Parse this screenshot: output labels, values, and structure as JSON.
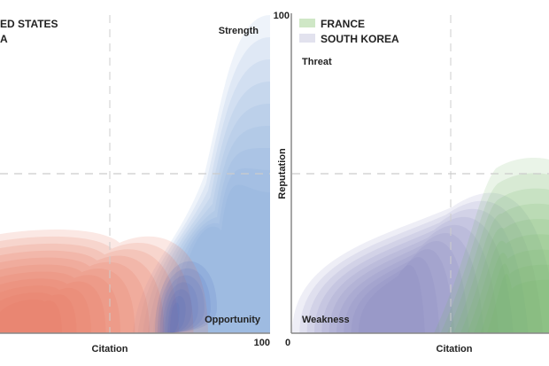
{
  "chart_data": [
    {
      "type": "area",
      "title": "",
      "xlabel": "Citation",
      "ylabel": "",
      "xlim": [
        0,
        100
      ],
      "ylim": [
        0,
        100
      ],
      "x_tick_labels": [
        "100"
      ],
      "legend": {
        "placement": "top-left",
        "entries": [
          {
            "label": "ED STATES",
            "color": "#9ec3e0"
          },
          {
            "label": "A",
            "color": "#e8836a"
          }
        ]
      },
      "quadrant_labels": [
        "Strength",
        "Opportunity"
      ],
      "series": [
        {
          "name": "ED STATES",
          "color": "#5b7fc8",
          "peaks": [
            {
              "x": 90,
              "y": 14
            },
            {
              "x": 95,
              "y": 85
            }
          ]
        },
        {
          "name": "A",
          "color": "#e0674a",
          "peaks": [
            {
              "x": 35,
              "y": 5
            }
          ]
        }
      ]
    },
    {
      "type": "area",
      "title": "",
      "xlabel": "Citation",
      "ylabel": "Reputation",
      "xlim": [
        0,
        100
      ],
      "ylim": [
        0,
        100
      ],
      "x_tick_labels": [
        "0"
      ],
      "y_tick_labels": [
        "100"
      ],
      "legend": {
        "placement": "top-left",
        "entries": [
          {
            "label": "FRANCE",
            "color": "#c9e4c0"
          },
          {
            "label": "SOUTH KOREA",
            "color": "#dcdcea"
          }
        ]
      },
      "quadrant_labels": [
        "Threat",
        "Weakness"
      ],
      "series": [
        {
          "name": "FRANCE",
          "color": "#5a9a52",
          "peaks": [
            {
              "x": 90,
              "y": 7
            }
          ]
        },
        {
          "name": "SOUTH KOREA",
          "color": "#6a5fa8",
          "peaks": [
            {
              "x": 30,
              "y": 5
            }
          ]
        }
      ]
    }
  ]
}
